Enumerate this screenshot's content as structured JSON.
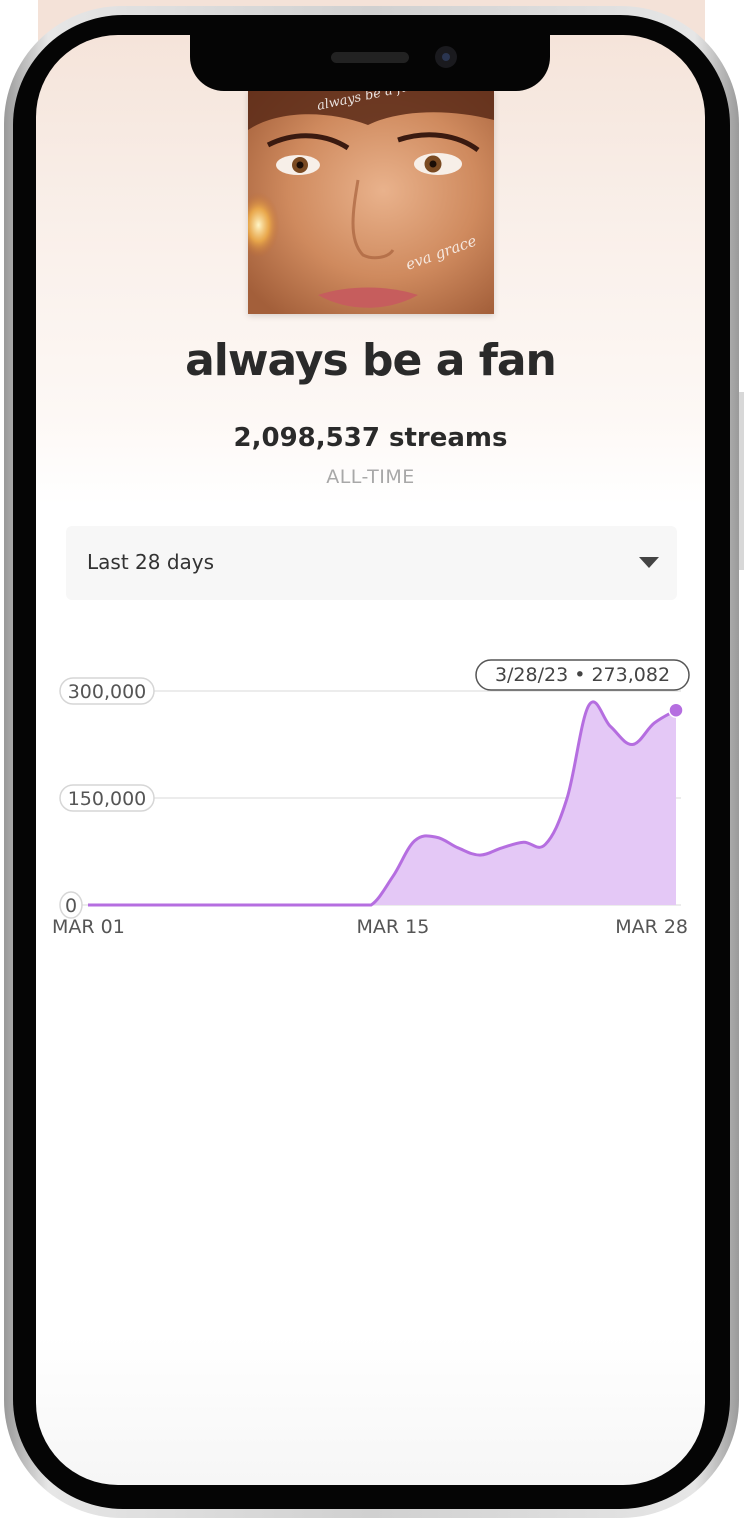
{
  "track": {
    "title": "always be a fan",
    "cover_script_top": "always be a fan",
    "cover_signature": "eva grace"
  },
  "stats": {
    "streams": "2,098,537 streams",
    "period": "ALL-TIME"
  },
  "range_select": {
    "selected": "Last 28 days"
  },
  "tooltip": {
    "text": "3/28/23 • 273,082"
  },
  "colors": {
    "accent": "#b56ee0",
    "fill": "#e4c8f6"
  },
  "chart_data": {
    "type": "area",
    "x": [
      "2023-03-01",
      "2023-03-02",
      "2023-03-03",
      "2023-03-04",
      "2023-03-05",
      "2023-03-06",
      "2023-03-07",
      "2023-03-08",
      "2023-03-09",
      "2023-03-10",
      "2023-03-11",
      "2023-03-12",
      "2023-03-13",
      "2023-03-14",
      "2023-03-15",
      "2023-03-16",
      "2023-03-17",
      "2023-03-18",
      "2023-03-19",
      "2023-03-20",
      "2023-03-21",
      "2023-03-22",
      "2023-03-23",
      "2023-03-24",
      "2023-03-25",
      "2023-03-26",
      "2023-03-27",
      "2023-03-28"
    ],
    "values": [
      0,
      0,
      0,
      0,
      0,
      0,
      0,
      0,
      0,
      0,
      0,
      0,
      0,
      0,
      40000,
      90000,
      95000,
      80000,
      70000,
      80000,
      88000,
      85000,
      150000,
      280000,
      250000,
      225000,
      255000,
      273082
    ],
    "x_tick_labels": [
      "MAR 01",
      "MAR 15",
      "MAR 28"
    ],
    "y_tick_labels": [
      "0",
      "150,000",
      "300,000"
    ],
    "y_ticks": [
      0,
      150000,
      300000
    ],
    "ylim": [
      0,
      300000
    ],
    "grid": true,
    "highlight": {
      "x": "2023-03-28",
      "value": 273082
    }
  }
}
